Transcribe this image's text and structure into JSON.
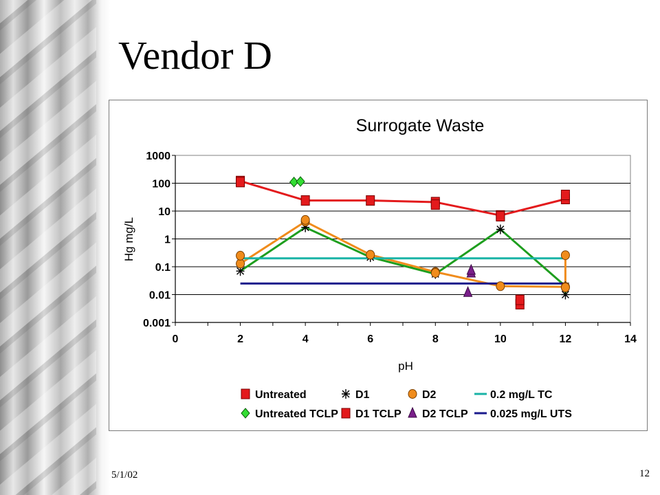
{
  "slide": {
    "title": "Vendor D",
    "date": "5/1/02",
    "page": "12"
  },
  "colors": {
    "untreated": "#e31a1c",
    "d1": "#1e9e1e",
    "d2": "#f08c1c",
    "tc": "#19b3a6",
    "uts": "#1a1a8c",
    "untreated_tclp": "#33dd33",
    "d2_tclp": "#7a1f8a"
  },
  "chart_data": {
    "type": "scatter",
    "title": "Surrogate Waste",
    "xlabel": "pH",
    "ylabel": "Hg mg/L",
    "xlim": [
      0,
      14
    ],
    "ylim": [
      0.001,
      1000
    ],
    "yscale": "log",
    "x_ticks": [
      "0",
      "2",
      "4",
      "6",
      "8",
      "10",
      "12",
      "14"
    ],
    "y_ticks": [
      "1000",
      "100",
      "10",
      "1",
      "0.1",
      "0.01",
      "0.001"
    ],
    "grid": "horizontal",
    "legend_position": "bottom",
    "series": [
      {
        "name": "Untreated",
        "marker": "square",
        "line": true,
        "points": [
          [
            2,
            120
          ],
          [
            4,
            24
          ],
          [
            6,
            24
          ],
          [
            8,
            21
          ],
          [
            10,
            7
          ],
          [
            12,
            27
          ]
        ],
        "extra_points": [
          [
            2,
            110
          ],
          [
            8,
            17
          ],
          [
            10,
            6.5
          ],
          [
            12,
            38
          ]
        ]
      },
      {
        "name": "D1",
        "marker": "asterisk",
        "line": true,
        "points": [
          [
            2,
            0.07
          ],
          [
            4,
            2.6
          ],
          [
            6,
            0.22
          ],
          [
            8,
            0.055
          ],
          [
            10,
            2.2
          ],
          [
            12,
            0.02
          ],
          [
            12,
            0.01
          ]
        ]
      },
      {
        "name": "D2",
        "marker": "circle",
        "line": true,
        "points": [
          [
            2,
            0.13
          ],
          [
            4,
            4.2
          ],
          [
            6,
            0.27
          ],
          [
            8,
            0.065
          ],
          [
            10,
            0.02
          ],
          [
            12,
            0.019
          ],
          [
            12,
            0.26
          ]
        ],
        "extra_points": [
          [
            2,
            0.25
          ],
          [
            4,
            4.8
          ],
          [
            8,
            0.06
          ],
          [
            12,
            0.018
          ]
        ]
      },
      {
        "name": "0.2 mg/L TC",
        "marker": "line",
        "line": true,
        "points": [
          [
            2,
            0.2
          ],
          [
            12,
            0.2
          ]
        ]
      },
      {
        "name": "Untreated TCLP",
        "marker": "diamond",
        "line": false,
        "points": [
          [
            3.65,
            110
          ],
          [
            3.85,
            115
          ]
        ]
      },
      {
        "name": "D1 TCLP",
        "marker": "square",
        "line": false,
        "points": [
          [
            10.6,
            0.0045
          ],
          [
            10.6,
            0.0065
          ]
        ]
      },
      {
        "name": "D2 TCLP",
        "marker": "triangle",
        "line": false,
        "points": [
          [
            9.1,
            0.06
          ],
          [
            9.1,
            0.075
          ],
          [
            9.0,
            0.012
          ]
        ]
      },
      {
        "name": "0.025 mg/L UTS",
        "marker": "line",
        "line": true,
        "points": [
          [
            2,
            0.025
          ],
          [
            12,
            0.025
          ]
        ]
      }
    ]
  }
}
